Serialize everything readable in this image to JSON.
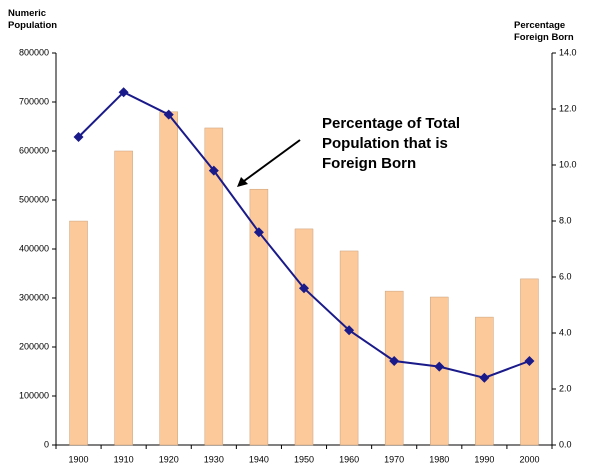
{
  "chart_data": {
    "type": "bar",
    "ylabel": "Numeric Population",
    "y2label": "Percentage Foreign Born",
    "annotation": "Percentage of Total Population that is Foreign Born",
    "categories": [
      "1900",
      "1910",
      "1920",
      "1930",
      "1940",
      "1950",
      "1960",
      "1970",
      "1980",
      "1990",
      "2000"
    ],
    "series": [
      {
        "type": "bar",
        "color": "#fcc99b",
        "values": [
          457000,
          600000,
          680000,
          647000,
          522000,
          441000,
          396000,
          314000,
          302000,
          261000,
          339000
        ]
      },
      {
        "type": "line",
        "axis": "y2",
        "color": "#1a1a8a",
        "values": [
          11.0,
          12.6,
          11.8,
          9.8,
          7.6,
          5.6,
          4.1,
          3.0,
          2.8,
          2.4,
          3.0
        ]
      }
    ],
    "ylim": [
      0,
      800000
    ],
    "yticks": [
      0,
      100000,
      200000,
      300000,
      400000,
      500000,
      600000,
      700000,
      800000
    ],
    "y2lim": [
      0,
      14
    ],
    "y2ticks": [
      {
        "value": 0,
        "label": "0.0"
      },
      {
        "value": 2,
        "label": "2.0"
      },
      {
        "value": 4,
        "label": "4.0"
      },
      {
        "value": 6,
        "label": "6.0"
      },
      {
        "value": 8,
        "label": "8.0"
      },
      {
        "value": 10,
        "label": "10.0"
      },
      {
        "value": 12,
        "label": "12.0"
      },
      {
        "value": 14,
        "label": "14.0"
      }
    ]
  }
}
